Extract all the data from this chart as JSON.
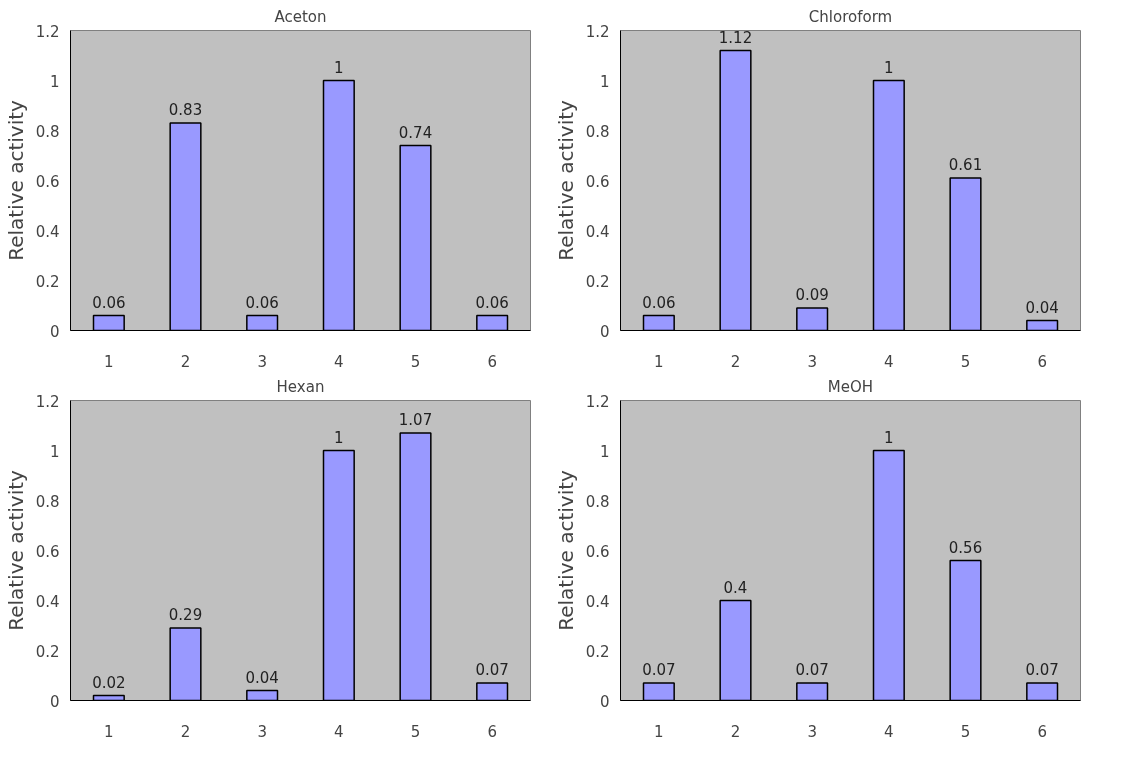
{
  "chart_data": [
    {
      "type": "bar",
      "title": "Aceton",
      "ylabel": "Relative activity",
      "categories": [
        "1",
        "2",
        "3",
        "4",
        "5",
        "6"
      ],
      "values": [
        0.06,
        0.83,
        0.06,
        1,
        0.74,
        0.06
      ],
      "color": "#9999ff",
      "ylim": [
        0,
        1.2
      ],
      "yticks": [
        0,
        0.2,
        0.4,
        0.6,
        0.8,
        1,
        1.2
      ],
      "data_labels": true,
      "grid": false
    },
    {
      "type": "bar",
      "title": "Chloroform",
      "ylabel": "Relative activity",
      "categories": [
        "1",
        "2",
        "3",
        "4",
        "5",
        "6"
      ],
      "values": [
        0.06,
        1.12,
        0.09,
        1,
        0.61,
        0.04
      ],
      "color": "#9999ff",
      "ylim": [
        0,
        1.2
      ],
      "yticks": [
        0,
        0.2,
        0.4,
        0.6,
        0.8,
        1,
        1.2
      ],
      "data_labels": true,
      "grid": false
    },
    {
      "type": "bar",
      "title": "Hexan",
      "ylabel": "Relative activity",
      "categories": [
        "1",
        "2",
        "3",
        "4",
        "5",
        "6"
      ],
      "values": [
        0.02,
        0.29,
        0.04,
        1,
        1.07,
        0.07
      ],
      "color": "#9999ff",
      "ylim": [
        0,
        1.2
      ],
      "yticks": [
        0,
        0.2,
        0.4,
        0.6,
        0.8,
        1,
        1.2
      ],
      "data_labels": true,
      "grid": false
    },
    {
      "type": "bar",
      "title": "MeOH",
      "ylabel": "Relative activity",
      "categories": [
        "1",
        "2",
        "3",
        "4",
        "5",
        "6"
      ],
      "values": [
        0.07,
        0.4,
        0.07,
        1,
        0.56,
        0.07
      ],
      "color": "#9999ff",
      "ylim": [
        0,
        1.2
      ],
      "yticks": [
        0,
        0.2,
        0.4,
        0.6,
        0.8,
        1,
        1.2
      ],
      "data_labels": true,
      "grid": false
    }
  ]
}
